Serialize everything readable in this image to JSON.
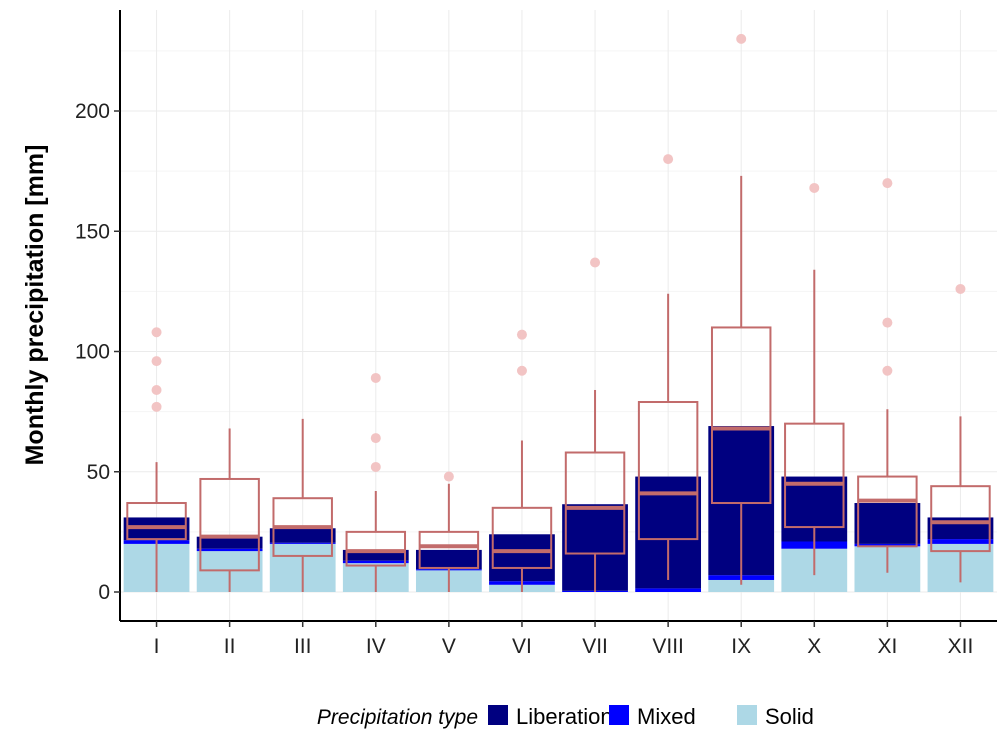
{
  "chart_data": {
    "type": "bar",
    "ylabel": "Monthly precipitation [mm]",
    "xlabel": "",
    "ylim": [
      -11,
      240
    ],
    "y_ticks": [
      0,
      50,
      100,
      150,
      200
    ],
    "grid": true,
    "legend_position": "bottom",
    "legend_title": "Precipitation type",
    "categories": [
      "I",
      "II",
      "III",
      "IV",
      "V",
      "VI",
      "VII",
      "VIII",
      "IX",
      "X",
      "XI",
      "XII"
    ],
    "stacked_series": [
      {
        "name": "Solid",
        "color": "#add8e6",
        "values": [
          20,
          17,
          20,
          12,
          9,
          3,
          0,
          0,
          5,
          18,
          19,
          20
        ]
      },
      {
        "name": "Mixed",
        "color": "#0000ff",
        "values": [
          1.5,
          1,
          0.5,
          1,
          0.5,
          1.5,
          0.5,
          1.5,
          2,
          3,
          1,
          2
        ]
      },
      {
        "name": "Liberation",
        "color": "#000080",
        "values": [
          9.5,
          5,
          6,
          4.5,
          8,
          19.5,
          36,
          46.5,
          62,
          27,
          17,
          9
        ]
      }
    ],
    "boxplot": {
      "color": "#c26b6b",
      "outlier_color": "#f2c4c4",
      "stats": [
        {
          "min": 0,
          "q1": 22,
          "median": 27,
          "q3": 37,
          "max": 54
        },
        {
          "min": 0,
          "q1": 9,
          "median": 23,
          "q3": 47,
          "max": 68
        },
        {
          "min": 0,
          "q1": 15,
          "median": 27,
          "q3": 39,
          "max": 72
        },
        {
          "min": 0,
          "q1": 11,
          "median": 17,
          "q3": 25,
          "max": 42
        },
        {
          "min": 0,
          "q1": 10,
          "median": 19,
          "q3": 25,
          "max": 45
        },
        {
          "min": 0,
          "q1": 10,
          "median": 17,
          "q3": 35,
          "max": 63
        },
        {
          "min": 0,
          "q1": 16,
          "median": 35,
          "q3": 58,
          "max": 84
        },
        {
          "min": 5,
          "q1": 22,
          "median": 41,
          "q3": 79,
          "max": 124
        },
        {
          "min": 3,
          "q1": 37,
          "median": 68,
          "q3": 110,
          "max": 173
        },
        {
          "min": 7,
          "q1": 27,
          "median": 45,
          "q3": 70,
          "max": 134
        },
        {
          "min": 8,
          "q1": 19,
          "median": 38,
          "q3": 48,
          "max": 76
        },
        {
          "min": 4,
          "q1": 17,
          "median": 29,
          "q3": 44,
          "max": 73
        }
      ],
      "outliers": [
        [
          108,
          96,
          84,
          77
        ],
        [],
        [],
        [
          89,
          64,
          52
        ],
        [
          48
        ],
        [
          107,
          92
        ],
        [
          137
        ],
        [
          180
        ],
        [
          230
        ],
        [
          168
        ],
        [
          170,
          112,
          92
        ],
        [
          126
        ]
      ]
    }
  }
}
